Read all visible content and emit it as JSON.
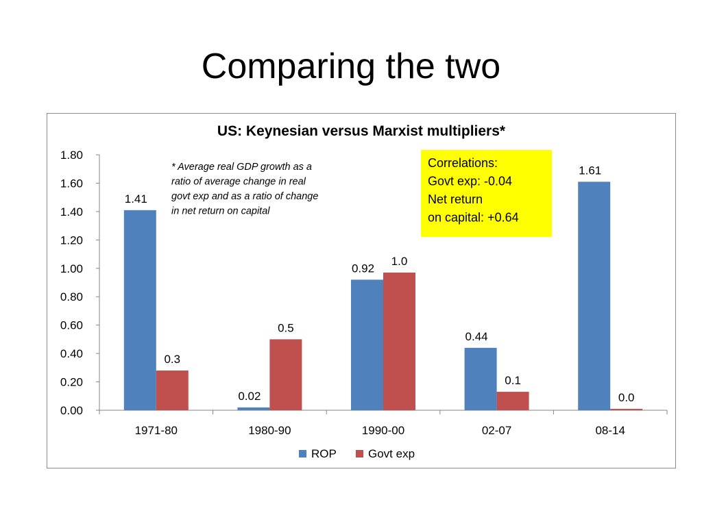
{
  "slide": {
    "title": "Comparing the two"
  },
  "chart_data": {
    "type": "bar",
    "title": "US: Keynesian versus Marxist multipliers*",
    "xlabel": "",
    "ylabel": "",
    "categories": [
      "1971-80",
      "1980-90",
      "1990-00",
      "02-07",
      "08-14"
    ],
    "series": [
      {
        "name": "ROP",
        "values": [
          1.41,
          0.02,
          0.92,
          0.44,
          1.61
        ],
        "labels": [
          "1.41",
          "0.02",
          "0.92",
          "0.44",
          "1.61"
        ],
        "color": "#4f81bd"
      },
      {
        "name": "Govt exp",
        "values": [
          0.28,
          0.5,
          0.97,
          0.13,
          0.01
        ],
        "labels": [
          "0.3",
          "0.5",
          "1.0",
          "0.1",
          "0.0"
        ],
        "color": "#c0504d"
      }
    ],
    "ylim": [
      0,
      1.8
    ],
    "yticks": [
      "0.00",
      "0.20",
      "0.40",
      "0.60",
      "0.80",
      "1.00",
      "1.20",
      "1.40",
      "1.60",
      "1.80"
    ],
    "grid": false,
    "legend_position": "bottom",
    "footnote_lines": [
      "* Average real GDP growth as a",
      "ratio of average change in real",
      "govt exp and as a ratio of change",
      "in net return on capital"
    ],
    "correlation_box": {
      "lines": [
        "Correlations:",
        "Govt exp: -0.04",
        "Net return",
        "on capital: +0.64"
      ],
      "background": "#ffff00"
    }
  }
}
